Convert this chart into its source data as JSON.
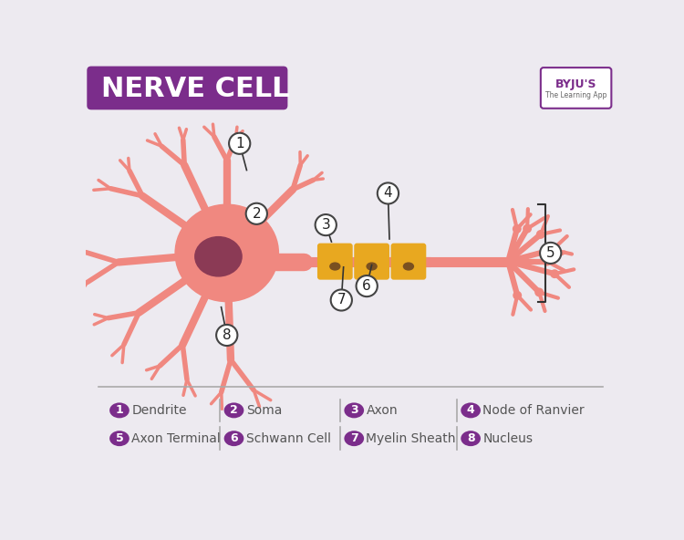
{
  "title": "NERVE CELL",
  "title_bg": "#7B2D8B",
  "title_text_color": "#FFFFFF",
  "bg_color": "#EDEAF0",
  "soma_color": "#F08880",
  "nucleus_color": "#8B3A55",
  "myelin_color": "#E8A820",
  "schwann_nucleus_color": "#7A5020",
  "legend_circle_color": "#7B2D8B",
  "legend_text_color": "#555555",
  "separator_color": "#AAAAAA",
  "legend_items_row1": [
    {
      "num": "1",
      "label": "Dendrite"
    },
    {
      "num": "2",
      "label": "Soma"
    },
    {
      "num": "3",
      "label": "Axon"
    },
    {
      "num": "4",
      "label": "Node of Ranvier"
    }
  ],
  "legend_items_row2": [
    {
      "num": "5",
      "label": "Axon Terminal"
    },
    {
      "num": "6",
      "label": "Schwann Cell"
    },
    {
      "num": "7",
      "label": "Myelin Sheath"
    },
    {
      "num": "8",
      "label": "Nucleus"
    }
  ]
}
